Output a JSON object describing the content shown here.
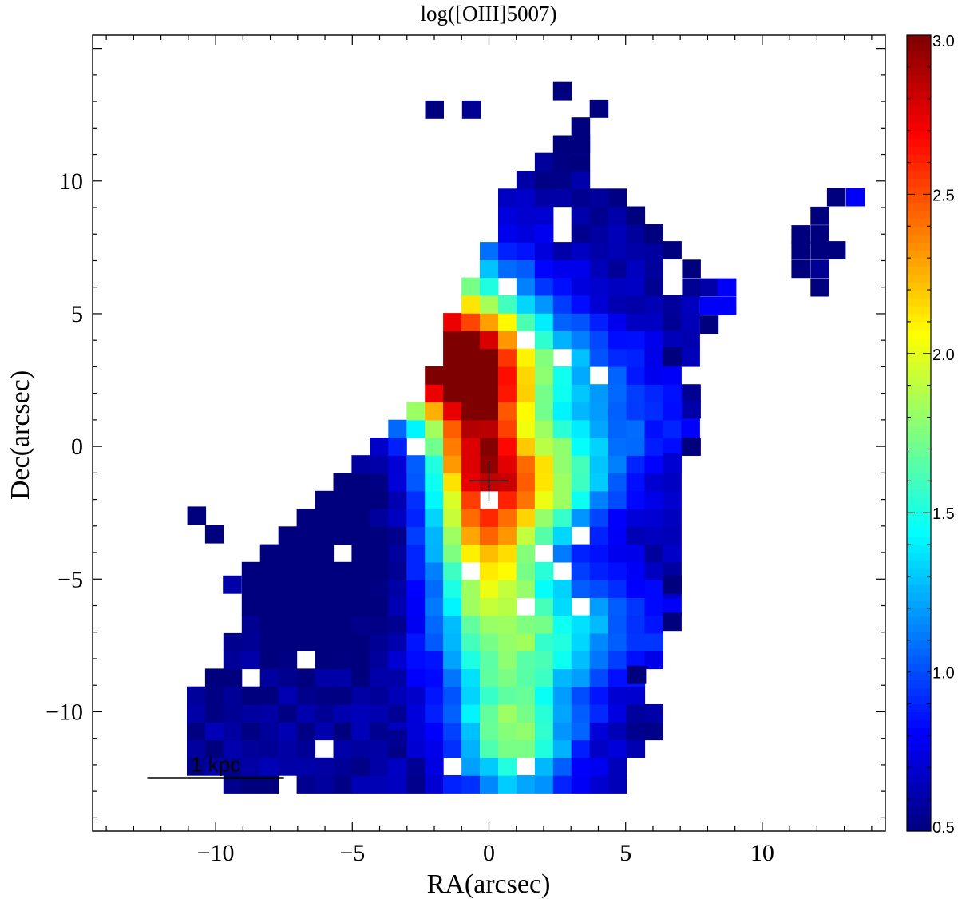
{
  "chart_data": {
    "type": "heatmap",
    "title": "log([OIII]5007)",
    "xlabel": "RA(arcsec)",
    "ylabel": "Dec(arcsec)",
    "xlim": [
      -14.5,
      14.5
    ],
    "ylim": [
      -14.5,
      15.5
    ],
    "x_ticks": [
      -10,
      -5,
      0,
      5,
      10
    ],
    "x_tick_labels": [
      "−10",
      "−5",
      "0",
      "5",
      "10"
    ],
    "y_ticks": [
      -10,
      -5,
      0,
      5,
      10
    ],
    "y_tick_labels": [
      "−10",
      "−5",
      "0",
      "5",
      "10"
    ],
    "colorbar": {
      "range": [
        0.5,
        3.0
      ],
      "ticks": [
        0.5,
        1.0,
        1.5,
        2.0,
        2.5,
        3.0
      ],
      "tick_labels": [
        "0.5",
        "1.0",
        "1.5",
        "2.0",
        "2.5",
        "3.0"
      ],
      "colormap": "jet"
    },
    "scale_bar": {
      "label": "1 kpc",
      "x_start": -12.5,
      "x_end": -7.5,
      "y": -12.5
    },
    "center_marker": {
      "x": 0.0,
      "y": -1.3,
      "type": "cross"
    },
    "pixel_size_arcsec": 0.67,
    "grid": false,
    "legend": "none"
  },
  "colors": {
    "jet_stops": [
      "#00007f",
      "#0000ff",
      "#007fff",
      "#00ffff",
      "#7fff7f",
      "#ffff00",
      "#ff7f00",
      "#ff0000",
      "#7f0000"
    ]
  }
}
